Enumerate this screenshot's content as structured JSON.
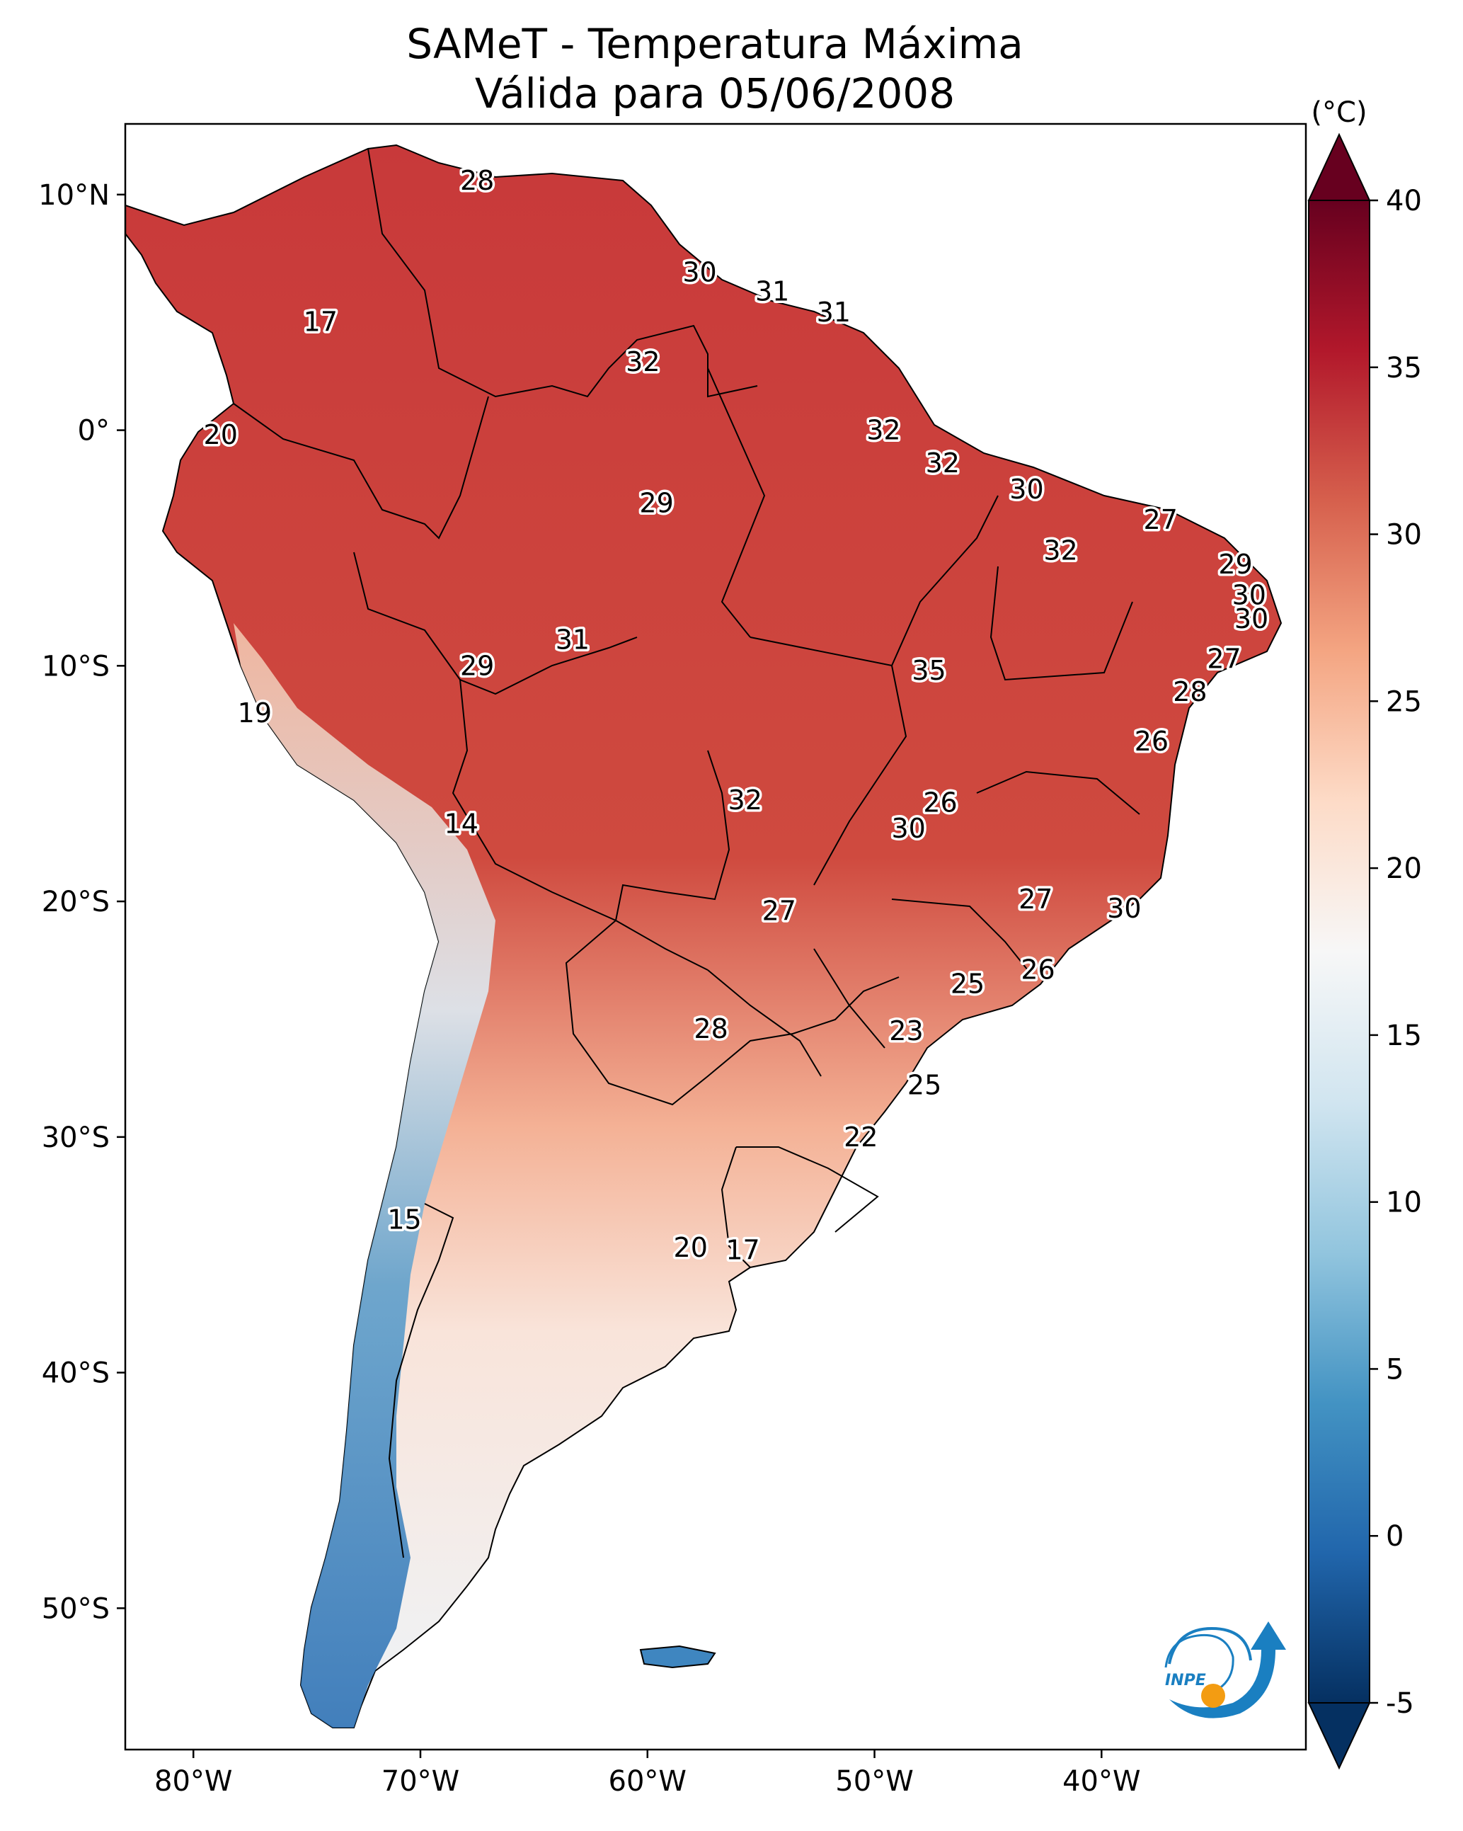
{
  "title_line1": "SAMeT - Temperatura Máxima",
  "title_line2": "Válida para 05/06/2008",
  "map": {
    "extent": {
      "lon_min": -83,
      "lon_max": -31,
      "lat_min": -56,
      "lat_max": 13
    },
    "lon_ticks": [
      {
        "value": -80,
        "label": "80°W"
      },
      {
        "value": -70,
        "label": "70°W"
      },
      {
        "value": -60,
        "label": "60°W"
      },
      {
        "value": -50,
        "label": "50°W"
      },
      {
        "value": -40,
        "label": "40°W"
      }
    ],
    "lat_ticks": [
      {
        "value": 10,
        "label": "10°N"
      },
      {
        "value": 0,
        "label": "0°"
      },
      {
        "value": -10,
        "label": "10°S"
      },
      {
        "value": -20,
        "label": "20°S"
      },
      {
        "value": -30,
        "label": "30°S"
      },
      {
        "value": -40,
        "label": "40°S"
      },
      {
        "value": -50,
        "label": "50°S"
      }
    ],
    "labels": [
      {
        "text": "28",
        "lon": -67.5,
        "lat": 10.6
      },
      {
        "text": "17",
        "lon": -74.4,
        "lat": 4.6
      },
      {
        "text": "30",
        "lon": -57.7,
        "lat": 6.7
      },
      {
        "text": "31",
        "lon": -54.5,
        "lat": 5.9
      },
      {
        "text": "31",
        "lon": -51.8,
        "lat": 5.0
      },
      {
        "text": "32",
        "lon": -60.2,
        "lat": 2.9
      },
      {
        "text": "20",
        "lon": -78.8,
        "lat": -0.2
      },
      {
        "text": "32",
        "lon": -49.6,
        "lat": 0.0
      },
      {
        "text": "32",
        "lon": -47.0,
        "lat": -1.4
      },
      {
        "text": "29",
        "lon": -59.6,
        "lat": -3.1
      },
      {
        "text": "30",
        "lon": -43.3,
        "lat": -2.5
      },
      {
        "text": "27",
        "lon": -37.4,
        "lat": -3.8
      },
      {
        "text": "32",
        "lon": -41.8,
        "lat": -5.1
      },
      {
        "text": "29",
        "lon": -34.1,
        "lat": -5.7
      },
      {
        "text": "30",
        "lon": -33.5,
        "lat": -7.0
      },
      {
        "text": "30",
        "lon": -33.4,
        "lat": -8.0
      },
      {
        "text": "31",
        "lon": -63.3,
        "lat": -8.9
      },
      {
        "text": "29",
        "lon": -67.5,
        "lat": -10.0
      },
      {
        "text": "35",
        "lon": -47.6,
        "lat": -10.2
      },
      {
        "text": "27",
        "lon": -34.6,
        "lat": -9.7
      },
      {
        "text": "28",
        "lon": -36.1,
        "lat": -11.1
      },
      {
        "text": "19",
        "lon": -77.3,
        "lat": -12.0
      },
      {
        "text": "26",
        "lon": -37.8,
        "lat": -13.2
      },
      {
        "text": "14",
        "lon": -68.2,
        "lat": -16.7
      },
      {
        "text": "32",
        "lon": -55.7,
        "lat": -15.7
      },
      {
        "text": "26",
        "lon": -47.1,
        "lat": -15.8
      },
      {
        "text": "30",
        "lon": -48.5,
        "lat": -16.9
      },
      {
        "text": "27",
        "lon": -54.2,
        "lat": -20.4
      },
      {
        "text": "27",
        "lon": -42.9,
        "lat": -19.9
      },
      {
        "text": "30",
        "lon": -39.0,
        "lat": -20.3
      },
      {
        "text": "26",
        "lon": -42.8,
        "lat": -22.9
      },
      {
        "text": "25",
        "lon": -45.9,
        "lat": -23.5
      },
      {
        "text": "28",
        "lon": -57.2,
        "lat": -25.4
      },
      {
        "text": "23",
        "lon": -48.6,
        "lat": -25.5
      },
      {
        "text": "25",
        "lon": -47.8,
        "lat": -27.8
      },
      {
        "text": "22",
        "lon": -50.6,
        "lat": -30.0
      },
      {
        "text": "15",
        "lon": -70.7,
        "lat": -33.5
      },
      {
        "text": "20",
        "lon": -58.1,
        "lat": -34.7
      },
      {
        "text": "17",
        "lon": -55.8,
        "lat": -34.8
      }
    ]
  },
  "colorbar": {
    "unit": "(°C)",
    "min": -5,
    "max": 40,
    "ticks": [
      {
        "value": 40,
        "label": "40"
      },
      {
        "value": 35,
        "label": "35"
      },
      {
        "value": 30,
        "label": "30"
      },
      {
        "value": 25,
        "label": "25"
      },
      {
        "value": 20,
        "label": "20"
      },
      {
        "value": 15,
        "label": "15"
      },
      {
        "value": 10,
        "label": "10"
      },
      {
        "value": 5,
        "label": "5"
      },
      {
        "value": 0,
        "label": "0"
      },
      {
        "value": -5,
        "label": "-5"
      }
    ],
    "colors": [
      "#053061",
      "#2166ac",
      "#4393c3",
      "#92c5de",
      "#d1e5f0",
      "#f7f7f7",
      "#fddbc7",
      "#f4a582",
      "#d6604d",
      "#b2182b",
      "#67001f"
    ]
  },
  "colors": {
    "ocean": "#ffffff",
    "frame": "#000000",
    "border": "#000000"
  },
  "logo": {
    "text": "INPE",
    "primary_color": "#1a7fc1",
    "accent_color": "#f39c12"
  }
}
